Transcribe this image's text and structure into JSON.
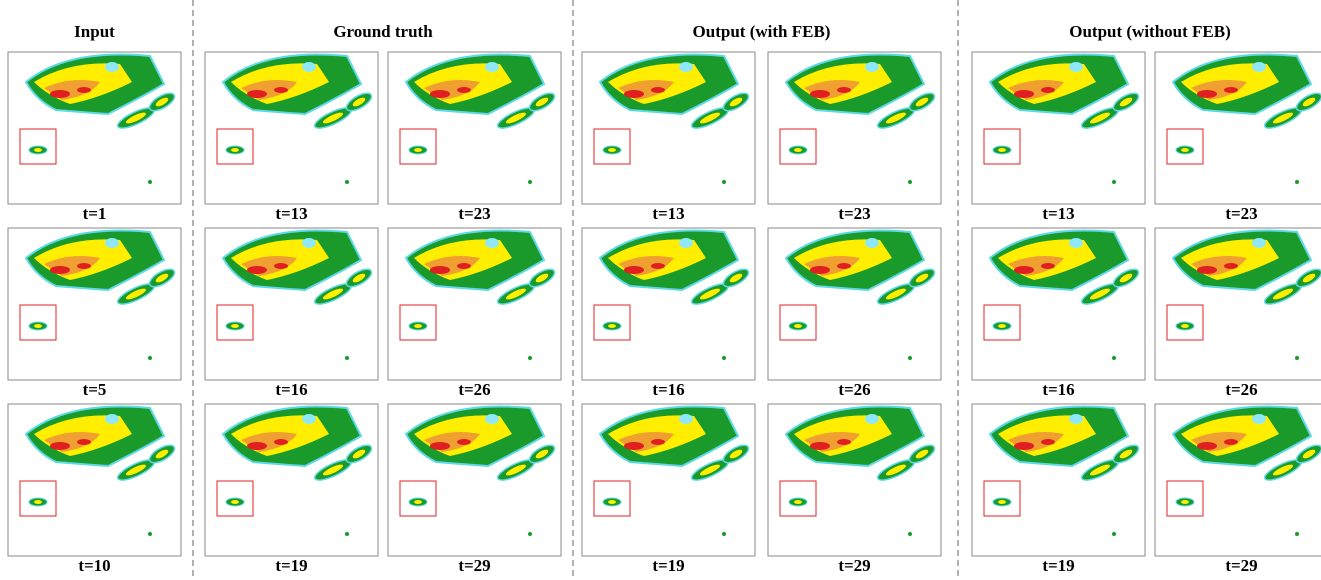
{
  "columns": [
    {
      "title": "Input",
      "panels": [
        [
          "t=1"
        ],
        [
          "t=5"
        ],
        [
          "t=10"
        ]
      ]
    },
    {
      "title": "Ground truth",
      "panels": [
        [
          "t=13",
          "t=23"
        ],
        [
          "t=16",
          "t=26"
        ],
        [
          "t=19",
          "t=29"
        ]
      ]
    },
    {
      "title": "Output (with FEB)",
      "panels": [
        [
          "t=13",
          "t=23"
        ],
        [
          "t=16",
          "t=26"
        ],
        [
          "t=19",
          "t=29"
        ]
      ]
    },
    {
      "title": "Output (without FEB)",
      "panels": [
        [
          "t=13",
          "t=23"
        ],
        [
          "t=16",
          "t=26"
        ],
        [
          "t=19",
          "t=29"
        ]
      ]
    }
  ]
}
